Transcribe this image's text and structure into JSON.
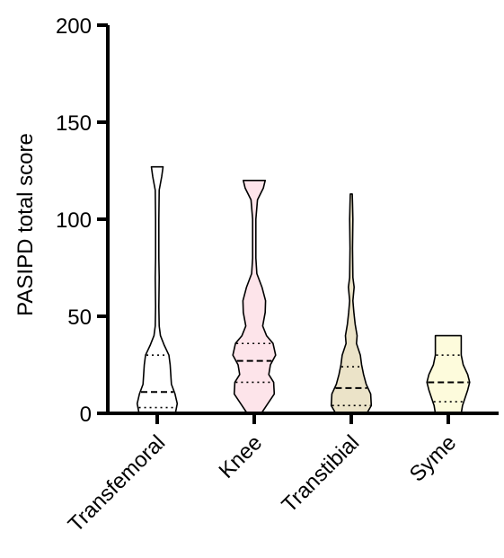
{
  "chart_data": {
    "type": "violin",
    "title": "",
    "xlabel": "",
    "ylabel": "PASIPD total score",
    "ylim": [
      0,
      200
    ],
    "yticks": [
      0,
      50,
      100,
      150,
      200
    ],
    "ytick_labels": [
      "0",
      "50",
      "100",
      "150",
      "200"
    ],
    "grid": false,
    "categories": [
      "Transfemoral",
      "Knee",
      "Transtibial",
      "Syme"
    ],
    "series": [
      {
        "category": "Transfemoral",
        "color": "#ffffff",
        "min": 0,
        "max": 127,
        "q1": 3,
        "median": 11,
        "q3": 30,
        "profile": [
          {
            "y": 0,
            "w": 0.56
          },
          {
            "y": 5,
            "w": 0.62
          },
          {
            "y": 10,
            "w": 0.55
          },
          {
            "y": 15,
            "w": 0.44
          },
          {
            "y": 20,
            "w": 0.42
          },
          {
            "y": 25,
            "w": 0.4
          },
          {
            "y": 30,
            "w": 0.36
          },
          {
            "y": 35,
            "w": 0.22
          },
          {
            "y": 40,
            "w": 0.1
          },
          {
            "y": 45,
            "w": 0.06
          },
          {
            "y": 55,
            "w": 0.05
          },
          {
            "y": 70,
            "w": 0.06
          },
          {
            "y": 80,
            "w": 0.05
          },
          {
            "y": 100,
            "w": 0.05
          },
          {
            "y": 115,
            "w": 0.06
          },
          {
            "y": 122,
            "w": 0.14
          },
          {
            "y": 127,
            "w": 0.18
          }
        ]
      },
      {
        "category": "Knee",
        "color": "#fde4ea",
        "min": 0,
        "max": 120,
        "q1": 16,
        "median": 27,
        "q3": 36,
        "profile": [
          {
            "y": 0,
            "w": 0.22
          },
          {
            "y": 5,
            "w": 0.42
          },
          {
            "y": 10,
            "w": 0.62
          },
          {
            "y": 16,
            "w": 0.6
          },
          {
            "y": 20,
            "w": 0.45
          },
          {
            "y": 25,
            "w": 0.5
          },
          {
            "y": 30,
            "w": 0.66
          },
          {
            "y": 36,
            "w": 0.58
          },
          {
            "y": 40,
            "w": 0.38
          },
          {
            "y": 45,
            "w": 0.26
          },
          {
            "y": 52,
            "w": 0.34
          },
          {
            "y": 58,
            "w": 0.35
          },
          {
            "y": 65,
            "w": 0.24
          },
          {
            "y": 72,
            "w": 0.08
          },
          {
            "y": 80,
            "w": 0.05
          },
          {
            "y": 100,
            "w": 0.05
          },
          {
            "y": 110,
            "w": 0.1
          },
          {
            "y": 116,
            "w": 0.28
          },
          {
            "y": 120,
            "w": 0.34
          }
        ]
      },
      {
        "category": "Transtibial",
        "color": "#ebe3c8",
        "min": 0,
        "max": 113,
        "q1": 4,
        "median": 13,
        "q3": 24,
        "profile": [
          {
            "y": 0,
            "w": 0.48
          },
          {
            "y": 4,
            "w": 0.62
          },
          {
            "y": 10,
            "w": 0.6
          },
          {
            "y": 15,
            "w": 0.46
          },
          {
            "y": 20,
            "w": 0.38
          },
          {
            "y": 25,
            "w": 0.32
          },
          {
            "y": 30,
            "w": 0.28
          },
          {
            "y": 36,
            "w": 0.16
          },
          {
            "y": 40,
            "w": 0.18
          },
          {
            "y": 46,
            "w": 0.12
          },
          {
            "y": 52,
            "w": 0.08
          },
          {
            "y": 58,
            "w": 0.05
          },
          {
            "y": 65,
            "w": 0.09
          },
          {
            "y": 70,
            "w": 0.05
          },
          {
            "y": 85,
            "w": 0.04
          },
          {
            "y": 100,
            "w": 0.05
          },
          {
            "y": 108,
            "w": 0.04
          },
          {
            "y": 113,
            "w": 0.03
          }
        ]
      },
      {
        "category": "Syme",
        "color": "#fdfbdc",
        "min": 0,
        "max": 40,
        "q1": 6,
        "median": 16,
        "q3": 30,
        "profile": [
          {
            "y": 0,
            "w": 0.4
          },
          {
            "y": 4,
            "w": 0.44
          },
          {
            "y": 8,
            "w": 0.52
          },
          {
            "y": 12,
            "w": 0.6
          },
          {
            "y": 16,
            "w": 0.66
          },
          {
            "y": 20,
            "w": 0.6
          },
          {
            "y": 25,
            "w": 0.46
          },
          {
            "y": 30,
            "w": 0.4
          },
          {
            "y": 35,
            "w": 0.4
          },
          {
            "y": 40,
            "w": 0.4
          }
        ]
      }
    ]
  }
}
